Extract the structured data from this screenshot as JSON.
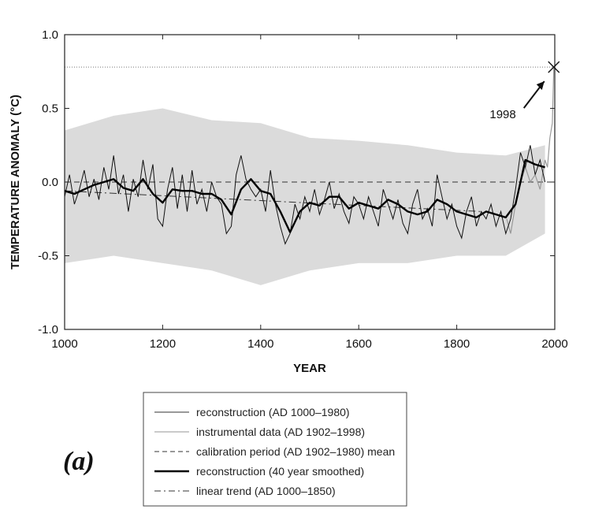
{
  "chart_data": {
    "type": "line",
    "title": "",
    "xlabel": "YEAR",
    "ylabel": "TEMPERATURE ANOMALY (°C)",
    "xlim": [
      1000,
      2000
    ],
    "ylim": [
      -1.0,
      1.0
    ],
    "x_ticks": [
      "1000",
      "1200",
      "1400",
      "1600",
      "1800",
      "2000"
    ],
    "y_ticks": [
      "1.0",
      "0.5",
      "0.0",
      "-0.5",
      "-1.0"
    ],
    "annotation": {
      "text": "1998",
      "x": 1998,
      "y": 0.78
    },
    "reference_line_y": 0.78,
    "panel_label": "(a)",
    "legend": [
      {
        "label": "reconstruction (AD 1000–1980)",
        "style": "thin-solid"
      },
      {
        "label": "instrumental data (AD 1902–1998)",
        "style": "grey-solid"
      },
      {
        "label": "calibration period (AD 1902–1980) mean",
        "style": "dashed"
      },
      {
        "label": "reconstruction (40 year smoothed)",
        "style": "thick-solid"
      },
      {
        "label": "linear trend (AD 1000–1850)",
        "style": "dash-dot"
      }
    ],
    "series": [
      {
        "name": "reconstruction (40 year smoothed)",
        "x": [
          1000,
          1020,
          1040,
          1060,
          1080,
          1100,
          1120,
          1140,
          1160,
          1180,
          1200,
          1220,
          1240,
          1260,
          1280,
          1300,
          1320,
          1340,
          1360,
          1380,
          1400,
          1420,
          1440,
          1460,
          1480,
          1500,
          1520,
          1540,
          1560,
          1580,
          1600,
          1620,
          1640,
          1660,
          1680,
          1700,
          1720,
          1740,
          1760,
          1780,
          1800,
          1820,
          1840,
          1860,
          1880,
          1900,
          1920,
          1940,
          1960,
          1980
        ],
        "y": [
          -0.06,
          -0.08,
          -0.05,
          -0.02,
          0.0,
          0.02,
          -0.04,
          -0.06,
          0.02,
          -0.08,
          -0.14,
          -0.05,
          -0.06,
          -0.06,
          -0.08,
          -0.08,
          -0.12,
          -0.22,
          -0.05,
          0.02,
          -0.06,
          -0.08,
          -0.2,
          -0.34,
          -0.2,
          -0.14,
          -0.16,
          -0.1,
          -0.1,
          -0.18,
          -0.14,
          -0.16,
          -0.18,
          -0.12,
          -0.15,
          -0.2,
          -0.22,
          -0.2,
          -0.12,
          -0.15,
          -0.2,
          -0.22,
          -0.24,
          -0.2,
          -0.22,
          -0.24,
          -0.15,
          0.15,
          0.12,
          0.1
        ]
      },
      {
        "name": "reconstruction (AD 1000–1980)",
        "x": [
          1000,
          1010,
          1020,
          1030,
          1040,
          1050,
          1060,
          1070,
          1080,
          1090,
          1100,
          1110,
          1120,
          1130,
          1140,
          1150,
          1160,
          1170,
          1180,
          1190,
          1200,
          1210,
          1220,
          1230,
          1240,
          1250,
          1260,
          1270,
          1280,
          1290,
          1300,
          1310,
          1320,
          1330,
          1340,
          1350,
          1360,
          1370,
          1380,
          1390,
          1400,
          1410,
          1420,
          1430,
          1440,
          1450,
          1460,
          1470,
          1480,
          1490,
          1500,
          1510,
          1520,
          1530,
          1540,
          1550,
          1560,
          1570,
          1580,
          1590,
          1600,
          1610,
          1620,
          1630,
          1640,
          1650,
          1660,
          1670,
          1680,
          1690,
          1700,
          1710,
          1720,
          1730,
          1740,
          1750,
          1760,
          1770,
          1780,
          1790,
          1800,
          1810,
          1820,
          1830,
          1840,
          1850,
          1860,
          1870,
          1880,
          1890,
          1900,
          1910,
          1920,
          1930,
          1940,
          1950,
          1960,
          1970,
          1980
        ],
        "y": [
          -0.1,
          0.05,
          -0.15,
          -0.05,
          0.08,
          -0.1,
          0.02,
          -0.12,
          0.1,
          -0.05,
          0.18,
          -0.08,
          0.05,
          -0.2,
          0.02,
          -0.1,
          0.15,
          -0.05,
          0.12,
          -0.25,
          -0.3,
          -0.05,
          0.1,
          -0.18,
          0.05,
          -0.2,
          0.08,
          -0.15,
          -0.05,
          -0.2,
          0.0,
          -0.1,
          -0.15,
          -0.35,
          -0.3,
          0.05,
          0.18,
          0.02,
          -0.05,
          -0.1,
          -0.05,
          -0.2,
          0.08,
          -0.15,
          -0.3,
          -0.42,
          -0.35,
          -0.15,
          -0.25,
          -0.1,
          -0.2,
          -0.05,
          -0.22,
          -0.12,
          0.0,
          -0.18,
          -0.08,
          -0.2,
          -0.28,
          -0.1,
          -0.15,
          -0.25,
          -0.1,
          -0.2,
          -0.3,
          -0.05,
          -0.15,
          -0.25,
          -0.12,
          -0.28,
          -0.35,
          -0.15,
          -0.05,
          -0.25,
          -0.18,
          -0.3,
          0.05,
          -0.1,
          -0.25,
          -0.15,
          -0.3,
          -0.38,
          -0.2,
          -0.1,
          -0.3,
          -0.2,
          -0.25,
          -0.15,
          -0.3,
          -0.2,
          -0.35,
          -0.25,
          -0.05,
          0.2,
          0.1,
          0.25,
          0.05,
          0.15,
          0.0
        ]
      },
      {
        "name": "instrumental data (AD 1902–1998)",
        "x": [
          1902,
          1910,
          1920,
          1930,
          1940,
          1950,
          1960,
          1970,
          1980,
          1985,
          1990,
          1995,
          1998
        ],
        "y": [
          -0.25,
          -0.35,
          -0.15,
          0.0,
          0.1,
          0.0,
          0.05,
          -0.05,
          0.15,
          0.1,
          0.3,
          0.4,
          0.78
        ]
      },
      {
        "name": "uncertainty band (grey)",
        "x": [
          1000,
          1100,
          1200,
          1300,
          1400,
          1500,
          1600,
          1700,
          1800,
          1900,
          1980
        ],
        "upper": [
          0.35,
          0.45,
          0.5,
          0.42,
          0.4,
          0.3,
          0.28,
          0.25,
          0.2,
          0.18,
          0.25
        ],
        "lower": [
          -0.55,
          -0.5,
          -0.55,
          -0.6,
          -0.7,
          -0.6,
          -0.55,
          -0.55,
          -0.5,
          -0.5,
          -0.35
        ]
      },
      {
        "name": "calibration period (AD 1902–1980) mean",
        "x": [
          1000,
          2000
        ],
        "y": [
          0.0,
          0.0
        ]
      },
      {
        "name": "linear trend (AD 1000–1850)",
        "x": [
          1000,
          1850
        ],
        "y": [
          -0.06,
          -0.2
        ]
      }
    ]
  }
}
